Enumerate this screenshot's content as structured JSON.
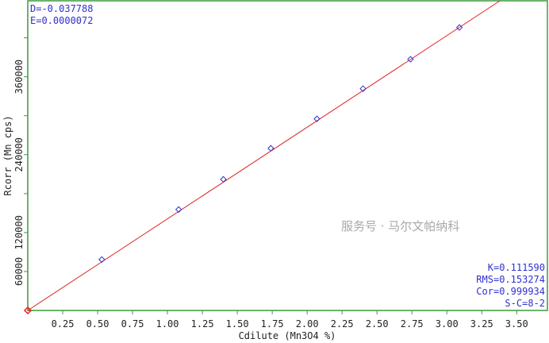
{
  "chart_data": {
    "type": "scatter",
    "xlabel": "Cdilute (Mn3O4 %)",
    "ylabel": "Rcorr (Mn cps)",
    "xlim": [
      0,
      3.72
    ],
    "ylim": [
      0,
      477000
    ],
    "x_ticks": [
      "0.25",
      "0.50",
      "0.75",
      "1.00",
      "1.25",
      "1.50",
      "1.75",
      "2.00",
      "2.25",
      "2.50",
      "2.75",
      "3.00",
      "3.25",
      "3.50"
    ],
    "x_tick_values": [
      0.25,
      0.5,
      0.75,
      1.0,
      1.25,
      1.5,
      1.75,
      2.0,
      2.25,
      2.5,
      2.75,
      3.0,
      3.25,
      3.5
    ],
    "y_ticks": [
      "60000",
      "120000",
      "240000",
      "360000"
    ],
    "y_tick_values": [
      60000,
      120000,
      240000,
      360000
    ],
    "y_minor_tick_values": [
      180000,
      300000,
      420000
    ],
    "grid": false,
    "points": [
      {
        "x": 0.53,
        "y": 78400
      },
      {
        "x": 1.08,
        "y": 155500
      },
      {
        "x": 1.4,
        "y": 202000
      },
      {
        "x": 1.74,
        "y": 249800
      },
      {
        "x": 2.07,
        "y": 295100
      },
      {
        "x": 2.4,
        "y": 341600
      },
      {
        "x": 2.74,
        "y": 386900
      },
      {
        "x": 3.09,
        "y": 435900
      }
    ],
    "origin_point": {
      "x": 0,
      "y": 0
    },
    "fit_line": {
      "x0": 0,
      "y0": 0,
      "x1": 3.38,
      "y1": 477000
    },
    "stats_top_left": [
      "D=-0.037788",
      "E=0.0000072"
    ],
    "stats_bottom_right": [
      "K=0.111590",
      "RMS=0.153274",
      "Cor=0.999934",
      "S-C=8-2"
    ],
    "colors": {
      "frame": "#3c9a3c",
      "line": "#e02020",
      "point": "#3030d0",
      "origin": "#e02020",
      "stats": "#3030d0"
    }
  },
  "watermark": "服务号 · 马尔文帕纳科"
}
